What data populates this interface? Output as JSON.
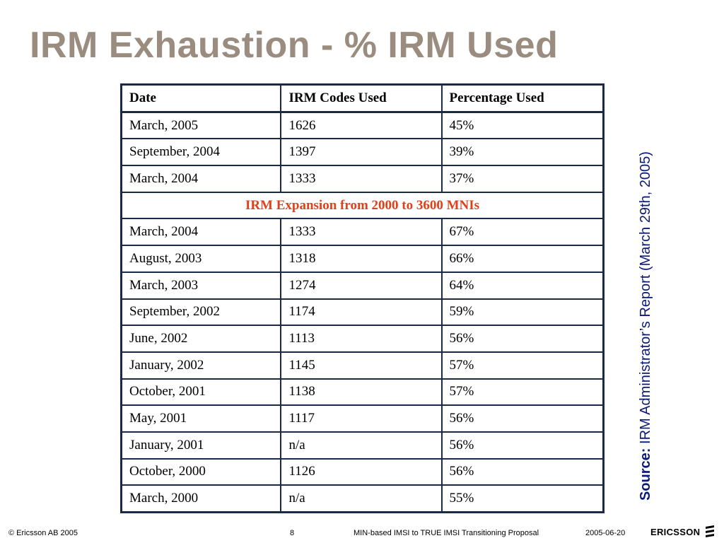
{
  "slide": {
    "title": "IRM Exhaustion - % IRM Used"
  },
  "table": {
    "headers": [
      "Date",
      "IRM Codes Used",
      "Percentage Used"
    ],
    "rows_before": [
      [
        "March, 2005",
        "1626",
        "45%"
      ],
      [
        "September, 2004",
        "1397",
        "39%"
      ],
      [
        "March, 2004",
        "1333",
        "37%"
      ]
    ],
    "expansion_label": "IRM Expansion from 2000 to 3600 MNIs",
    "rows_after": [
      [
        "March, 2004",
        "1333",
        "67%"
      ],
      [
        "August, 2003",
        "1318",
        "66%"
      ],
      [
        "March, 2003",
        "1274",
        "64%"
      ],
      [
        "September, 2002",
        "1174",
        "59%"
      ],
      [
        "June, 2002",
        "1113",
        "56%"
      ],
      [
        "January, 2002",
        "1145",
        "57%"
      ],
      [
        "October, 2001",
        "1138",
        "57%"
      ],
      [
        "May, 2001",
        "1117",
        "56%"
      ],
      [
        "January, 2001",
        "n/a",
        "56%"
      ],
      [
        "October, 2000",
        "1126",
        "56%"
      ],
      [
        "March, 2000",
        "n/a",
        "55%"
      ]
    ],
    "colors": {
      "border": "#1a2a44",
      "expansion_text": "#e0401a"
    }
  },
  "source": {
    "label": "Source:",
    "text": " IRM Administrator’s Report (March 29th, 2005)",
    "color": "#0b1a7a"
  },
  "footer": {
    "copyright": "© Ericsson AB 2005",
    "page_number": "8",
    "document_title": "MIN-based IMSI to TRUE IMSI Transitioning Proposal",
    "date": "2005-06-20",
    "logo_text": "ERICSSON",
    "logo_icon": "ericsson-logo-icon"
  },
  "title_color": "#9a8c7e"
}
